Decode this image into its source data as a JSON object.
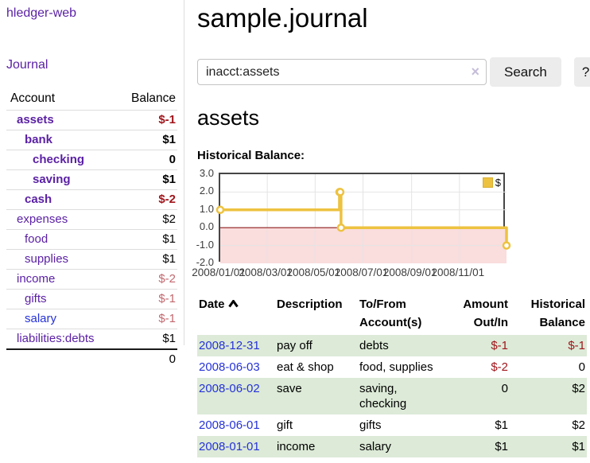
{
  "colors": {
    "link_purple": "#5b21a5",
    "link_blue": "#2632d8",
    "negative_strong": "#a0161c",
    "negative_soft": "#c2696f",
    "row_green": "#dcead7",
    "series_yellow": "#edc240",
    "chart_negative_fill": "#fadddd",
    "chart_zero_line": "#8c1b1b",
    "chart_border": "#464646"
  },
  "app": {
    "title": "hledger-web"
  },
  "sidebar": {
    "journal_link": "Journal",
    "headers": {
      "account": "Account",
      "balance": "Balance"
    },
    "accounts": [
      {
        "name": "assets",
        "balance": "$-1"
      },
      {
        "name": "bank",
        "balance": "$1"
      },
      {
        "name": "checking",
        "balance": "0"
      },
      {
        "name": "saving",
        "balance": "$1"
      },
      {
        "name": "cash",
        "balance": "$-2"
      },
      {
        "name": "expenses",
        "balance": "$2"
      },
      {
        "name": "food",
        "balance": "$1"
      },
      {
        "name": "supplies",
        "balance": "$1"
      },
      {
        "name": "income",
        "balance": "$-2"
      },
      {
        "name": "gifts",
        "balance": "$-1"
      },
      {
        "name": "salary",
        "balance": "$-1"
      },
      {
        "name": "liabilities:debts",
        "balance": "$1"
      }
    ],
    "total": "0"
  },
  "header": {
    "title": "sample.journal"
  },
  "search": {
    "value": "inacct:assets",
    "clear_icon": "×",
    "search_button": "Search",
    "help_button": "?"
  },
  "account_page": {
    "heading": "assets",
    "chart_title": "Historical Balance:"
  },
  "chart_data": {
    "type": "line",
    "step": true,
    "title": "Historical Balance",
    "x_range": [
      "2008-01-01",
      "2008-12-31"
    ],
    "ylim": [
      -2,
      3
    ],
    "yticks": [
      {
        "value": 3,
        "label": "3.0"
      },
      {
        "value": 2,
        "label": "2.0"
      },
      {
        "value": 1,
        "label": "1.0"
      },
      {
        "value": 0,
        "label": "0.0"
      },
      {
        "value": -1,
        "label": "-1.0"
      },
      {
        "value": -2,
        "label": "-2.0"
      }
    ],
    "xticks": [
      {
        "date": "2008-01-01",
        "label": "2008/01/01"
      },
      {
        "date": "2008-03-01",
        "label": "2008/03/01"
      },
      {
        "date": "2008-05-01",
        "label": "2008/05/01"
      },
      {
        "date": "2008-07-01",
        "label": "2008/07/01"
      },
      {
        "date": "2008-09-01",
        "label": "2008/09/01"
      },
      {
        "date": "2008-11-01",
        "label": "2008/11/01"
      }
    ],
    "legend": [
      {
        "label": "$",
        "color": "#edc240"
      }
    ],
    "series": [
      {
        "name": "$",
        "color": "#edc240",
        "points": [
          {
            "date": "2008-01-01",
            "value": 1
          },
          {
            "date": "2008-06-01",
            "value": 2
          },
          {
            "date": "2008-06-02",
            "value": 2
          },
          {
            "date": "2008-06-03",
            "value": 0
          },
          {
            "date": "2008-12-31",
            "value": -1
          }
        ]
      }
    ],
    "grid": true,
    "legend_position": "top-right"
  },
  "register": {
    "headers": {
      "date": "Date",
      "description": "Description",
      "accounts": "To/From Account(s)",
      "amount": "Amount Out/In",
      "balance": "Historical Balance"
    },
    "rows": [
      {
        "date": "2008-12-31",
        "description": "pay off",
        "accounts": "debts",
        "amount": "$-1",
        "balance": "$-1"
      },
      {
        "date": "2008-06-03",
        "description": "eat & shop",
        "accounts": "food, supplies",
        "amount": "$-2",
        "balance": "0"
      },
      {
        "date": "2008-06-02",
        "description": "save",
        "accounts": "saving, checking",
        "amount": "0",
        "balance": "$2"
      },
      {
        "date": "2008-06-01",
        "description": "gift",
        "accounts": "gifts",
        "amount": "$1",
        "balance": "$2"
      },
      {
        "date": "2008-01-01",
        "description": "income",
        "accounts": "salary",
        "amount": "$1",
        "balance": "$1"
      }
    ]
  }
}
